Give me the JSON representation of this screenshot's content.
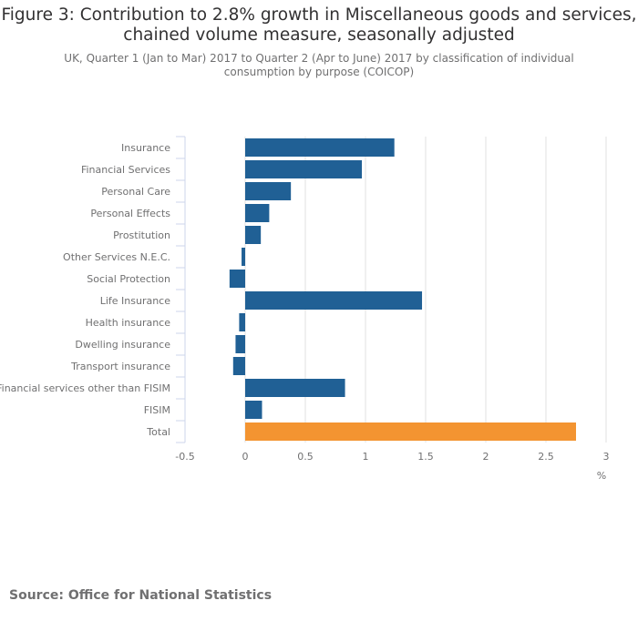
{
  "title": "Figure 3: Contribution to 2.8% growth in Miscellaneous goods and services, chained volume measure, seasonally adjusted",
  "subtitle": "UK, Quarter 1 (Jan to Mar) 2017 to Quarter 2 (Apr to June) 2017 by classification of individual consumption by purpose (COICOP)",
  "source": "Source: Office for National Statistics",
  "colors": {
    "bar": "#206095",
    "total": "#F39431",
    "grid": "#e0e0e0",
    "axis": "#ccd6eb",
    "text": "#707071"
  },
  "chart_data": {
    "type": "bar",
    "orientation": "horizontal",
    "categories": [
      "Insurance",
      "Financial Services",
      "Personal Care",
      "Personal Effects",
      "Prostitution",
      "Other Services N.E.C.",
      "Social Protection",
      "Life Insurance",
      "Health insurance",
      "Dwelling insurance",
      "Transport insurance",
      "Financial services other than FISIM",
      "FISIM",
      "Total"
    ],
    "values": [
      1.24,
      0.97,
      0.38,
      0.2,
      0.13,
      -0.03,
      -0.13,
      1.47,
      -0.05,
      -0.08,
      -0.1,
      0.83,
      0.14,
      2.75
    ],
    "highlight": "Total",
    "xlim": [
      -0.5,
      3
    ],
    "xticks": [
      -0.5,
      0,
      0.5,
      1,
      1.5,
      2,
      2.5,
      3
    ],
    "xtick_labels": [
      "-0.5",
      "0",
      "0.5",
      "1",
      "1.5",
      "2",
      "2.5",
      "3"
    ],
    "xlabel": "%",
    "ylabel": "",
    "grid": "vertical"
  }
}
